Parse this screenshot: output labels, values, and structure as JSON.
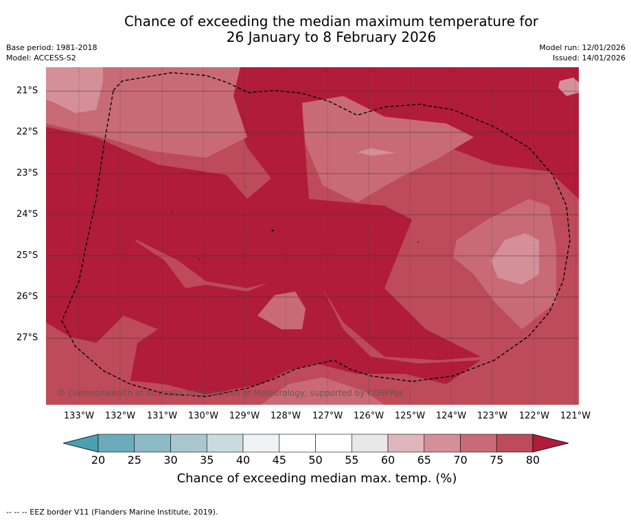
{
  "title": {
    "line1": "Chance of exceeding the median maximum temperature for",
    "line2": "26 January to 8 February 2026"
  },
  "meta": {
    "base_period": "Base period: 1981-2018",
    "model": "Model: ACCESS-S2",
    "model_run": "Model run: 12/01/2026",
    "issued": "Issued: 14/01/2026"
  },
  "map": {
    "copyright": "© Commonwealth of Australia 2026, Bureau of Meteorology, supported by COSPPac",
    "lat_labels": [
      "21°S",
      "22°S",
      "23°S",
      "24°S",
      "25°S",
      "26°S",
      "27°S"
    ],
    "lon_labels": [
      "133°W",
      "132°W",
      "131°W",
      "130°W",
      "129°W",
      "128°W",
      "127°W",
      "126°W",
      "125°W",
      "124°W",
      "123°W",
      "122°W",
      "121°W"
    ]
  },
  "colorbar": {
    "ticks": [
      "20",
      "25",
      "30",
      "35",
      "40",
      "45",
      "50",
      "55",
      "60",
      "65",
      "70",
      "75",
      "80"
    ],
    "colors": [
      "#6aacbc",
      "#8cbac6",
      "#a9c8ce",
      "#c9dbdf",
      "#eef3f4",
      "#ffffff",
      "#ffffff",
      "#e8e8e8",
      "#e0b5bb",
      "#d48f98",
      "#c86b76",
      "#bd4b59"
    ],
    "low_extend_color": "#4aa0b0",
    "high_extend_color": "#b01c3a",
    "label": "Chance of exceeding median max. temp. (%)"
  },
  "legend": {
    "eez": "-- -- -- EEZ border V11 (Flanders Marine Institute, 2019)."
  }
}
